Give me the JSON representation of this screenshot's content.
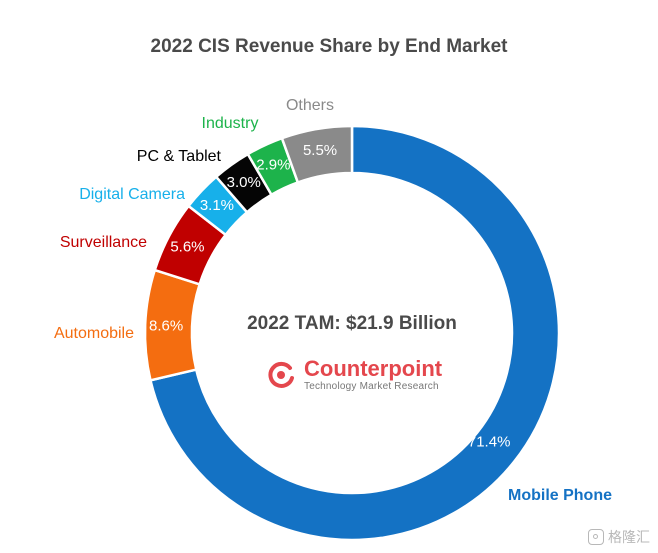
{
  "chart_data": {
    "type": "pie",
    "title": "2022 CIS Revenue Share by End Market",
    "center_label": "2022 TAM: $21.9 Billion",
    "categories": [
      "Mobile Phone",
      "Automobile",
      "Surveillance",
      "Digital Camera",
      "PC & Tablet",
      "Industry",
      "Others"
    ],
    "values": [
      71.4,
      8.6,
      5.6,
      3.1,
      3.0,
      2.9,
      5.5
    ],
    "data_labels": [
      "71.4%",
      "8.6%",
      "5.6%",
      "3.1%",
      "3.0%",
      "2.9%",
      "5.5%"
    ],
    "colors": [
      "#1472c4",
      "#f46d10",
      "#c00000",
      "#17b0ea",
      "#050505",
      "#1db34b",
      "#8a8a8a"
    ],
    "label_colors": [
      "#1472c4",
      "#f46d10",
      "#c00000",
      "#17b0ea",
      "#000000",
      "#1db34b",
      "#8a8a8a"
    ],
    "donut": true,
    "legend": "none"
  },
  "logo": {
    "name": "Counterpoint",
    "tagline": "Technology Market Research"
  },
  "watermark": {
    "text": "格隆汇",
    "icon": "watermark-logo-icon"
  }
}
